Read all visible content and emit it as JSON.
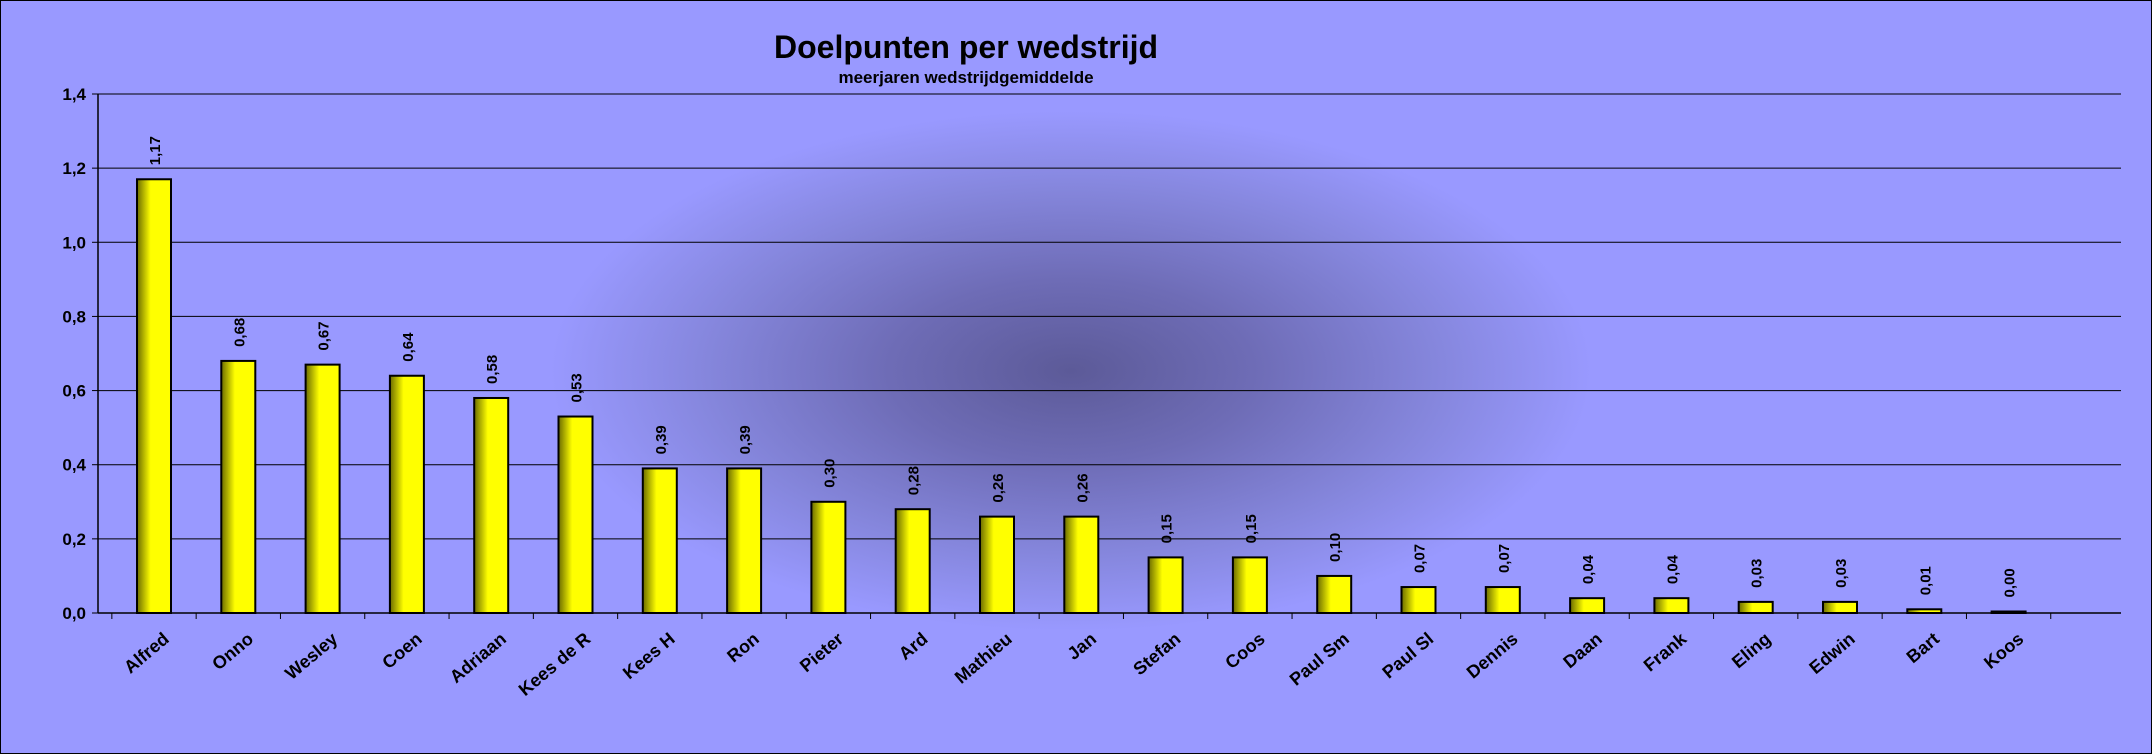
{
  "chart_data": {
    "type": "bar",
    "title": "Doelpunten per wedstrijd",
    "subtitle": "meerjaren wedstrijdgemiddelde",
    "ylim": [
      0,
      1.4
    ],
    "yticks": [
      "0,0",
      "0,2",
      "0,4",
      "0,6",
      "0,8",
      "1,0",
      "1,2",
      "1,4"
    ],
    "grid": true,
    "colors": {
      "bar": "#ffff00",
      "bar_shade": "#6b6b00",
      "background": "#9999ff"
    },
    "categories": [
      "Alfred",
      "Onno",
      "Wesley",
      "Coen",
      "Adriaan",
      "Kees de R",
      "Kees H",
      "Ron",
      "Pieter",
      "Ard",
      "Mathieu",
      "Jan",
      "Stefan",
      "Coos",
      "Paul Sm",
      "Paul Sl",
      "Dennis",
      "Daan",
      "Frank",
      "Eling",
      "Edwin",
      "Bart",
      "Koos"
    ],
    "values": [
      1.17,
      0.68,
      0.67,
      0.64,
      0.58,
      0.53,
      0.39,
      0.39,
      0.3,
      0.28,
      0.26,
      0.26,
      0.15,
      0.15,
      0.1,
      0.07,
      0.07,
      0.04,
      0.04,
      0.03,
      0.03,
      0.01,
      0.0
    ],
    "data_labels": [
      "1,17",
      "0,68",
      "0,67",
      "0,64",
      "0,58",
      "0,53",
      "0,39",
      "0,39",
      "0,30",
      "0,28",
      "0,26",
      "0,26",
      "0,15",
      "0,15",
      "0,10",
      "0,07",
      "0,07",
      "0,04",
      "0,04",
      "0,03",
      "0,03",
      "0,01",
      "0,00"
    ]
  }
}
